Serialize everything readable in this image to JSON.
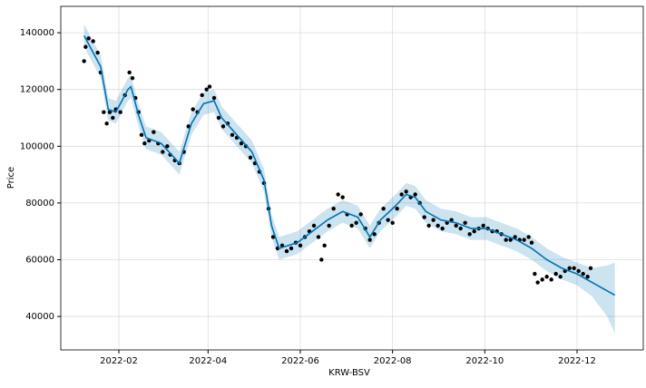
{
  "chart_data": {
    "type": "forecast",
    "xlabel": "KRW-BSV",
    "ylabel": "Price",
    "xlim": [
      -6.4,
      378.8
    ],
    "ylim": [
      28200,
      149300
    ],
    "xticks": [
      {
        "value": 32,
        "label": "2022-02"
      },
      {
        "value": 91,
        "label": "2022-04"
      },
      {
        "value": 152,
        "label": "2022-06"
      },
      {
        "value": 213,
        "label": "2022-08"
      },
      {
        "value": 274,
        "label": "2022-10"
      },
      {
        "value": 335,
        "label": "2022-12"
      }
    ],
    "yticks": [
      40000,
      60000,
      80000,
      100000,
      120000,
      140000
    ],
    "grid": true,
    "points": {
      "color": "#000000",
      "x": [
        9,
        10,
        12,
        15,
        18,
        20,
        22,
        24,
        26,
        28,
        30,
        33,
        36,
        39,
        41,
        43,
        45,
        47,
        49,
        52,
        55,
        58,
        61,
        64,
        66,
        69,
        72,
        75,
        78,
        81,
        84,
        87,
        90,
        92,
        95,
        98,
        101,
        104,
        107,
        110,
        113,
        116,
        119,
        122,
        125,
        128,
        131,
        134,
        137,
        140,
        143,
        146,
        149,
        152,
        155,
        158,
        161,
        164,
        166,
        168,
        171,
        174,
        177,
        180,
        183,
        186,
        189,
        192,
        195,
        198,
        201,
        204,
        207,
        210,
        213,
        216,
        219,
        222,
        225,
        228,
        231,
        234,
        237,
        240,
        243,
        246,
        249,
        252,
        255,
        258,
        261,
        264,
        267,
        270,
        273,
        276,
        279,
        282,
        285,
        288,
        291,
        294,
        297,
        300,
        303,
        305,
        307,
        309,
        312,
        315,
        318,
        321,
        324,
        327,
        330,
        333,
        336,
        339,
        342,
        344
      ],
      "values": [
        130000,
        135000,
        138000,
        137000,
        133000,
        126000,
        112000,
        108000,
        112000,
        110000,
        113000,
        112000,
        118000,
        126000,
        124000,
        117000,
        112000,
        104000,
        101000,
        102000,
        105000,
        101000,
        98000,
        100000,
        97000,
        95000,
        94000,
        98000,
        107000,
        113000,
        112000,
        118000,
        120000,
        121000,
        117000,
        110000,
        107000,
        108000,
        104000,
        103000,
        101000,
        100000,
        96000,
        94000,
        91000,
        87000,
        78000,
        68000,
        64000,
        65000,
        63000,
        64000,
        66000,
        65000,
        68000,
        70000,
        72000,
        68000,
        60000,
        65000,
        72000,
        78000,
        83000,
        82000,
        76000,
        72000,
        73000,
        76000,
        71000,
        67000,
        69000,
        73000,
        78000,
        74000,
        73000,
        78000,
        83000,
        84000,
        82000,
        83000,
        80000,
        75000,
        72000,
        74000,
        72000,
        71000,
        73000,
        74000,
        72000,
        71000,
        73000,
        69000,
        70000,
        71000,
        72000,
        71000,
        70000,
        70000,
        69000,
        67000,
        67000,
        68000,
        67000,
        67000,
        68000,
        66000,
        55000,
        52000,
        53000,
        54000,
        53000,
        55000,
        54000,
        56000,
        57000,
        57000,
        56000,
        55000,
        54000,
        57000
      ]
    },
    "forecast": {
      "color": "#0072b2",
      "band_color": "#0072b2",
      "x": [
        9,
        20,
        25,
        30,
        38,
        40,
        45,
        50,
        60,
        72,
        80,
        88,
        95,
        100,
        110,
        120,
        128,
        133,
        138,
        150,
        160,
        170,
        180,
        190,
        198,
        205,
        215,
        222,
        228,
        235,
        245,
        255,
        265,
        275,
        285,
        295,
        305,
        315,
        325,
        335,
        345,
        355,
        360
      ],
      "values": [
        139000,
        128000,
        113000,
        112000,
        120000,
        121000,
        111000,
        103000,
        101000,
        94000,
        108000,
        115000,
        116000,
        110000,
        104000,
        98000,
        88000,
        72000,
        64000,
        66000,
        70000,
        74000,
        77000,
        75000,
        68000,
        74000,
        79000,
        83000,
        82000,
        77000,
        74000,
        73000,
        71000,
        71000,
        69000,
        67000,
        64000,
        60000,
        57000,
        55000,
        52000,
        49000,
        47500
      ],
      "lower": [
        135000,
        124000,
        109000,
        108000,
        116000,
        117000,
        107000,
        99000,
        97000,
        90000,
        104000,
        111000,
        112000,
        106000,
        100000,
        94000,
        84000,
        68000,
        60000,
        62000,
        66000,
        70000,
        73000,
        71000,
        64000,
        70000,
        75000,
        79000,
        78000,
        73000,
        70000,
        69000,
        67000,
        67000,
        65000,
        63000,
        60000,
        56000,
        53000,
        51000,
        47000,
        40000,
        34000
      ],
      "upper": [
        143000,
        132000,
        117000,
        116000,
        124000,
        125000,
        115000,
        107000,
        105000,
        98000,
        112000,
        119000,
        120000,
        114000,
        108000,
        102000,
        92000,
        76000,
        68000,
        70000,
        74000,
        78000,
        81000,
        79000,
        72000,
        78000,
        83000,
        87000,
        86000,
        81000,
        78000,
        77000,
        75000,
        75000,
        73000,
        71000,
        68000,
        64000,
        61000,
        59000,
        57000,
        58000,
        59000
      ]
    }
  }
}
